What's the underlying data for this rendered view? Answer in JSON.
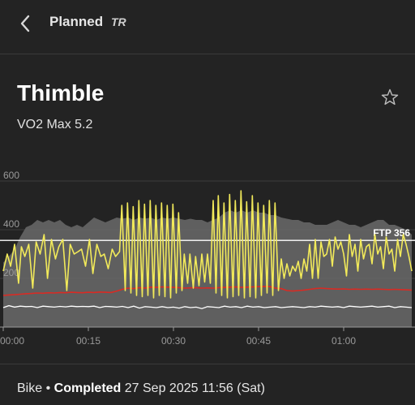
{
  "header": {
    "back_icon": "chevron-left-icon",
    "title": "Planned",
    "logo": "TR"
  },
  "workout": {
    "name": "Thimble",
    "subtitle": "VO2 Max 5.2",
    "favorite_icon": "star-outline-icon"
  },
  "colors": {
    "background": "#232323",
    "power": "#f2ea5a",
    "heart_rate": "#d92b24",
    "cadence": "#ffffff",
    "target_area": "#6a6a6a",
    "ftp_line": "#ffffff"
  },
  "chart_data": {
    "type": "line",
    "x_unit": "time",
    "y_ticks": [
      "600",
      "400",
      "200"
    ],
    "ylim": [
      0,
      620
    ],
    "x_ticks": [
      "00:00",
      "00:15",
      "00:30",
      "00:45",
      "01:00"
    ],
    "x_tick_minutes": [
      0,
      15,
      30,
      45,
      60
    ],
    "xlim_minutes": [
      0,
      72
    ],
    "ftp": {
      "label": "FTP 356",
      "value": 356
    },
    "series": [
      {
        "key": "target_power",
        "x": [
          0,
          1,
          2,
          3,
          4,
          5,
          6,
          7,
          8,
          9,
          10,
          11,
          12,
          13,
          14,
          15,
          16,
          17,
          18,
          19,
          20,
          21,
          22,
          23,
          24,
          25,
          26,
          27,
          28,
          29,
          30,
          31,
          32,
          33,
          34,
          35,
          36,
          37,
          38,
          39,
          40,
          41,
          42,
          43,
          44,
          45,
          46,
          47,
          48,
          49,
          50,
          51,
          52,
          53,
          54,
          55,
          56,
          57,
          58,
          59,
          60,
          61,
          62,
          63,
          64,
          65,
          66,
          67,
          68,
          69,
          70,
          71,
          72
        ],
        "values": [
          265,
          290,
          320,
          370,
          410,
          420,
          440,
          430,
          440,
          430,
          440,
          420,
          410,
          420,
          410,
          430,
          450,
          440,
          430,
          440,
          450,
          445,
          450,
          440,
          450,
          445,
          450,
          440,
          450,
          445,
          450,
          445,
          440,
          445,
          440,
          440,
          430,
          440,
          450,
          470,
          480,
          470,
          480,
          470,
          480,
          470,
          470,
          460,
          460,
          450,
          445,
          440,
          440,
          430,
          430,
          420,
          420,
          420,
          430,
          440,
          430,
          420,
          420,
          410,
          420,
          430,
          440,
          440,
          420,
          420,
          410,
          400,
          380
        ]
      },
      {
        "key": "power",
        "x": [
          0,
          0.7,
          1.3,
          2,
          2.7,
          3.2,
          3.8,
          4.5,
          5.2,
          5.8,
          6.5,
          7.2,
          7.8,
          8.5,
          9.2,
          9.8,
          10.5,
          11.2,
          11.8,
          12.5,
          13.2,
          13.8,
          14.5,
          15.2,
          15.8,
          16.5,
          17.2,
          17.8,
          18.5,
          19.2,
          19.8,
          20.5,
          20.9,
          21.5,
          21.9,
          22.5,
          22.9,
          23.5,
          23.9,
          24.5,
          24.9,
          25.5,
          25.9,
          26.5,
          26.9,
          27.5,
          27.9,
          28.5,
          28.9,
          29.5,
          29.9,
          30.5,
          30.9,
          31.5,
          31.9,
          32.5,
          32.9,
          33.5,
          33.9,
          34.5,
          35,
          35.5,
          36,
          36.5,
          37,
          37.5,
          37.9,
          38.5,
          38.9,
          39.5,
          39.9,
          40.5,
          40.9,
          41.5,
          41.9,
          42.5,
          42.9,
          43.5,
          43.9,
          44.5,
          44.9,
          45.5,
          45.9,
          46.5,
          46.9,
          47.5,
          47.9,
          48.5,
          49,
          49.5,
          50,
          50.5,
          51,
          51.5,
          52,
          52.5,
          53,
          53.5,
          54,
          54.5,
          55,
          55.5,
          56,
          56.5,
          57,
          57.5,
          58,
          58.5,
          59,
          59.5,
          60,
          60.5,
          61,
          61.5,
          62,
          62.5,
          63,
          63.5,
          64,
          64.5,
          65,
          65.5,
          66,
          66.5,
          67,
          67.5,
          68,
          68.5,
          69,
          69.5,
          70,
          70.5,
          71,
          71.5,
          72
        ],
        "values": [
          230,
          300,
          250,
          340,
          180,
          330,
          290,
          340,
          160,
          350,
          300,
          380,
          200,
          360,
          280,
          330,
          360,
          150,
          340,
          300,
          310,
          320,
          250,
          360,
          220,
          340,
          290,
          300,
          240,
          320,
          290,
          310,
          500,
          150,
          510,
          140,
          495,
          130,
          520,
          125,
          505,
          130,
          520,
          120,
          500,
          130,
          510,
          125,
          500,
          120,
          505,
          140,
          470,
          150,
          300,
          180,
          300,
          160,
          290,
          170,
          300,
          185,
          300,
          180,
          520,
          140,
          540,
          130,
          510,
          120,
          545,
          125,
          520,
          130,
          560,
          120,
          515,
          125,
          540,
          120,
          510,
          130,
          500,
          140,
          520,
          130,
          510,
          150,
          280,
          200,
          260,
          210,
          250,
          230,
          270,
          200,
          280,
          230,
          340,
          200,
          360,
          200,
          350,
          290,
          300,
          360,
          250,
          370,
          320,
          350,
          300,
          210,
          380,
          290,
          340,
          230,
          360,
          280,
          330,
          340,
          260,
          380,
          300,
          330,
          240,
          370,
          300,
          320,
          230,
          360,
          290,
          380,
          340,
          290,
          230
        ]
      },
      {
        "key": "heart_rate",
        "x": [
          0,
          1,
          2,
          3,
          4,
          5,
          6,
          7,
          8,
          9,
          10,
          11,
          12,
          13,
          14,
          15,
          16,
          17,
          18,
          19,
          20,
          21,
          22,
          23,
          24,
          25,
          26,
          27,
          28,
          29,
          30,
          31,
          32,
          33,
          34,
          35,
          36,
          37,
          38,
          39,
          40,
          41,
          42,
          43,
          44,
          45,
          46,
          47,
          48,
          49,
          50,
          51,
          52,
          53,
          54,
          55,
          56,
          57,
          58,
          59,
          60,
          61,
          62,
          63,
          64,
          65,
          66,
          67,
          68,
          69,
          70,
          71,
          72
        ],
        "values": [
          130,
          132,
          133,
          135,
          137,
          138,
          140,
          139,
          141,
          140,
          142,
          141,
          143,
          142,
          141,
          143,
          142,
          144,
          143,
          142,
          148,
          155,
          160,
          158,
          162,
          160,
          164,
          163,
          165,
          164,
          163,
          162,
          160,
          161,
          162,
          160,
          161,
          160,
          162,
          163,
          164,
          165,
          163,
          164,
          165,
          166,
          167,
          166,
          160,
          158,
          150,
          148,
          150,
          152,
          155,
          158,
          160,
          158,
          157,
          156,
          157,
          155,
          156,
          155,
          156,
          155,
          156,
          155,
          154,
          155,
          154,
          153,
          152
        ]
      },
      {
        "key": "cadence",
        "x": [
          0,
          1,
          2,
          3,
          4,
          5,
          6,
          7,
          8,
          9,
          10,
          11,
          12,
          13,
          14,
          15,
          16,
          17,
          18,
          19,
          20,
          21,
          22,
          23,
          24,
          25,
          26,
          27,
          28,
          29,
          30,
          31,
          32,
          33,
          34,
          35,
          36,
          37,
          38,
          39,
          40,
          41,
          42,
          43,
          44,
          45,
          46,
          47,
          48,
          49,
          50,
          51,
          52,
          53,
          54,
          55,
          56,
          57,
          58,
          59,
          60,
          61,
          62,
          63,
          64,
          65,
          66,
          67,
          68,
          69,
          70,
          71,
          72
        ],
        "values": [
          80,
          88,
          82,
          86,
          84,
          85,
          80,
          86,
          84,
          82,
          85,
          83,
          86,
          84,
          85,
          84,
          86,
          80,
          85,
          84,
          82,
          85,
          80,
          86,
          78,
          84,
          82,
          80,
          84,
          80,
          82,
          78,
          84,
          80,
          82,
          76,
          84,
          82,
          80,
          86,
          82,
          84,
          80,
          86,
          82,
          84,
          80,
          82,
          84,
          80,
          82,
          84,
          82,
          80,
          84,
          82,
          86,
          84,
          82,
          84,
          80,
          86,
          84,
          82,
          84,
          86,
          82,
          84,
          86,
          80,
          84,
          82,
          80
        ]
      }
    ]
  },
  "footer": {
    "sport": "Bike",
    "separator": "•",
    "status": "Completed",
    "datetime": "27 Sep 2025 11:56 (Sat)"
  }
}
